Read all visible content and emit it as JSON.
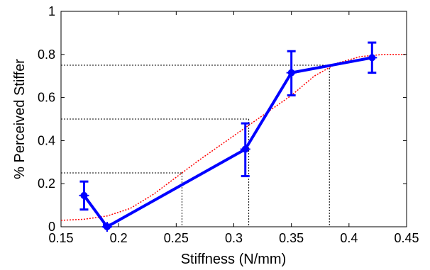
{
  "chart_data": {
    "type": "line",
    "title": "",
    "xlabel": "Stiffness (N/mm)",
    "ylabel": "% Perceived Stiffer",
    "xlim": [
      0.15,
      0.45
    ],
    "ylim": [
      0,
      1
    ],
    "x_ticks": [
      0.15,
      0.2,
      0.25,
      0.3,
      0.35,
      0.4,
      0.45
    ],
    "x_tick_labels": [
      "0.15",
      "0.2",
      "0.25",
      "0.3",
      "0.35",
      "0.4",
      "0.45"
    ],
    "y_ticks": [
      0,
      0.2,
      0.4,
      0.6,
      0.8,
      1
    ],
    "y_tick_labels": [
      "0",
      "0.2",
      "0.4",
      "0.6",
      "0.8",
      "1"
    ],
    "grid": false,
    "series": [
      {
        "style": "solid line with error bars and star markers",
        "color": "#0000ff",
        "x": [
          0.17,
          0.19,
          0.31,
          0.35,
          0.42
        ],
        "y": [
          0.145,
          0.0,
          0.36,
          0.715,
          0.785
        ],
        "err_low": [
          0.08,
          0.0,
          0.235,
          0.61,
          0.715
        ],
        "err_high": [
          0.21,
          0.01,
          0.48,
          0.815,
          0.855
        ]
      },
      {
        "style": "dotted fitted curve",
        "color": "#ff0000",
        "x": [
          0.15,
          0.17,
          0.19,
          0.21,
          0.23,
          0.25,
          0.27,
          0.29,
          0.31,
          0.33,
          0.35,
          0.37,
          0.39,
          0.41,
          0.43,
          0.45
        ],
        "y": [
          0.03,
          0.035,
          0.05,
          0.085,
          0.15,
          0.23,
          0.31,
          0.385,
          0.46,
          0.535,
          0.61,
          0.7,
          0.76,
          0.79,
          0.8,
          0.8
        ]
      }
    ],
    "reference_lines": [
      {
        "level": 0.25,
        "x": 0.255
      },
      {
        "level": 0.5,
        "x": 0.313
      },
      {
        "level": 0.75,
        "x": 0.383
      }
    ],
    "reference_color": "#000000"
  }
}
